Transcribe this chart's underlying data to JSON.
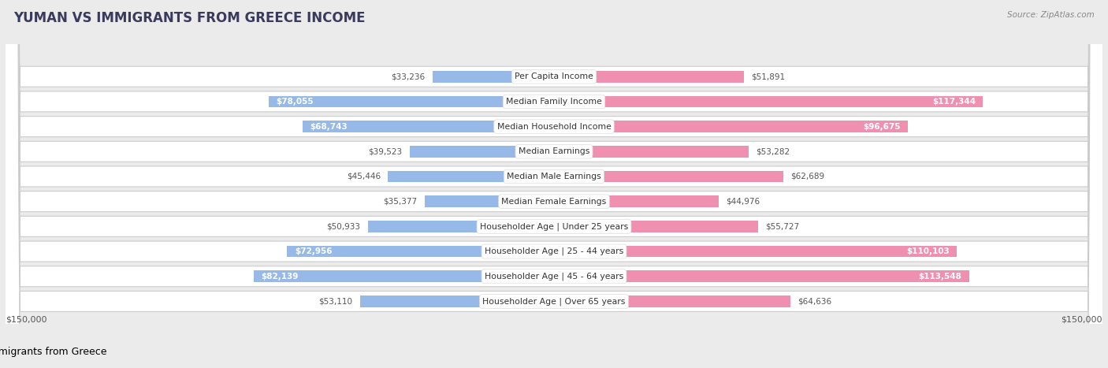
{
  "title": "YUMAN VS IMMIGRANTS FROM GREECE INCOME",
  "source": "Source: ZipAtlas.com",
  "categories": [
    "Per Capita Income",
    "Median Family Income",
    "Median Household Income",
    "Median Earnings",
    "Median Male Earnings",
    "Median Female Earnings",
    "Householder Age | Under 25 years",
    "Householder Age | 25 - 44 years",
    "Householder Age | 45 - 64 years",
    "Householder Age | Over 65 years"
  ],
  "yuman_values": [
    33236,
    78055,
    68743,
    39523,
    45446,
    35377,
    50933,
    72956,
    82139,
    53110
  ],
  "greece_values": [
    51891,
    117344,
    96675,
    53282,
    62689,
    44976,
    55727,
    110103,
    113548,
    64636
  ],
  "yuman_color": "#97b9e8",
  "greece_color": "#f090b0",
  "max_value": 150000,
  "background_color": "#ebebeb",
  "row_bg_color": "#ffffff",
  "row_border_color": "#cccccc",
  "title_color": "#3a3a5c",
  "label_text_color": "#555555",
  "value_label_dark": "#555555",
  "value_label_white": "#ffffff",
  "legend_yuman_color": "#97b9e8",
  "legend_greece_color": "#f090b0",
  "greece_inside_threshold": 80000,
  "yuman_inside_threshold": 60000
}
